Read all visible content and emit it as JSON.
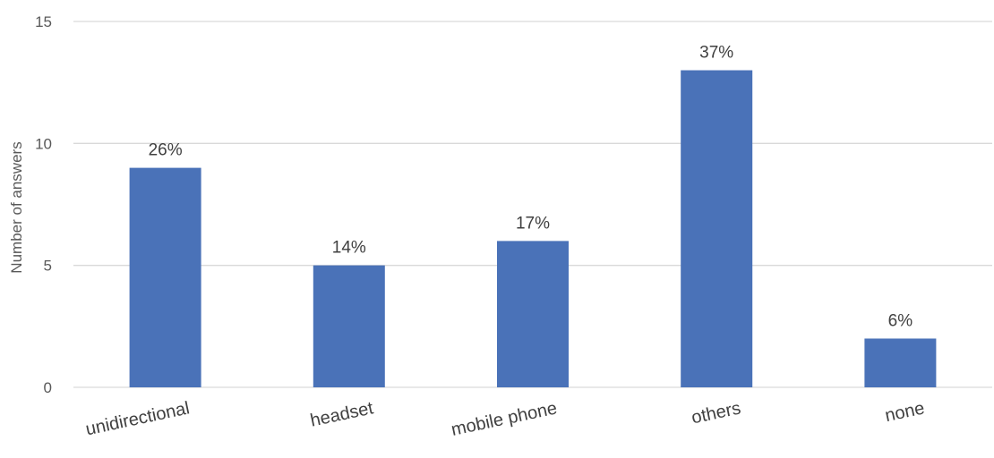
{
  "chart_data": {
    "type": "bar",
    "categories": [
      "unidirectional",
      "headset",
      "mobile phone",
      "others",
      "none"
    ],
    "values": [
      9,
      5,
      6,
      13,
      2
    ],
    "data_labels": [
      "26%",
      "14%",
      "17%",
      "37%",
      "6%"
    ],
    "title": "",
    "xlabel": "",
    "ylabel": "Number of answers",
    "ylim": [
      0,
      15
    ],
    "yticks": [
      0,
      5,
      10,
      15
    ],
    "grid": true,
    "legend": "none",
    "bar_color": "#4A72B8",
    "grid_color": "#D9D9D9"
  }
}
